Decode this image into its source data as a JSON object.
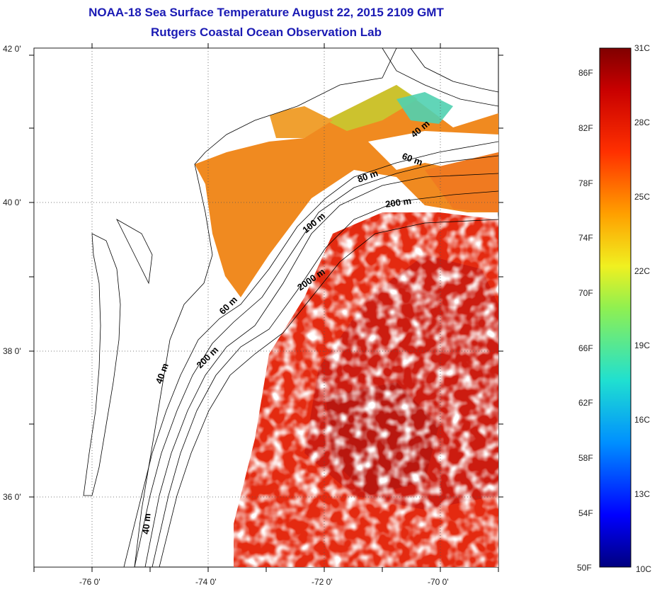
{
  "title": {
    "line1": "NOAA-18 Sea Surface Temperature August 22, 2015 2109 GMT",
    "line2": "Rutgers Coastal Ocean Observation Lab"
  },
  "map": {
    "lat_labels": [
      "42 0'",
      "40 0'",
      "38 0'",
      "36 0'"
    ],
    "lon_labels": [
      "-76 0'",
      "-74 0'",
      "-72 0'",
      "-70 0'"
    ],
    "lat_range": [
      35,
      42
    ],
    "lon_range": [
      -77,
      -69
    ],
    "contour_labels": [
      "40 m",
      "60 m",
      "80 m",
      "200 m",
      "100 m",
      "2000 m",
      "60 m",
      "200 m",
      "40 m",
      "40 m"
    ]
  },
  "colorbar": {
    "fahrenheit_labels": [
      "86F",
      "82F",
      "78F",
      "74F",
      "70F",
      "66F",
      "62F",
      "58F",
      "54F",
      "50F"
    ],
    "celsius_labels": [
      "31C",
      "28C",
      "25C",
      "22C",
      "19C",
      "16C",
      "13C",
      "10C"
    ],
    "range_celsius": [
      10,
      31
    ],
    "colors": [
      "#00007f",
      "#0000ff",
      "#00a0ff",
      "#20e0c0",
      "#80f060",
      "#f0f020",
      "#ffa000",
      "#ff3000",
      "#c00000",
      "#800000"
    ]
  }
}
